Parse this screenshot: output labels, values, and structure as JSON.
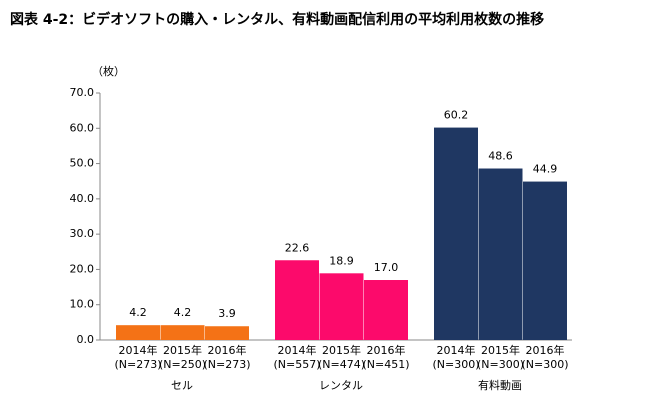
{
  "chart_data": {
    "type": "bar",
    "title": "図表 4-2：ビデオソフトの購入・レンタル、有料動画配信利用の平均利用枚数の推移",
    "y_unit": "（枚）",
    "ylim": [
      0,
      70
    ],
    "yticks": [
      {
        "value": 0,
        "label": "0.0"
      },
      {
        "value": 10,
        "label": "10.0"
      },
      {
        "value": 20,
        "label": "20.0"
      },
      {
        "value": 30,
        "label": "30.0"
      },
      {
        "value": 40,
        "label": "40.0"
      },
      {
        "value": 50,
        "label": "50.0"
      },
      {
        "value": 60,
        "label": "60.0"
      },
      {
        "value": 70,
        "label": "70.0"
      }
    ],
    "grid": false,
    "groups": [
      {
        "name": "セル",
        "color": "#f47216",
        "categories": [
          [
            "2014年",
            "(N=273)"
          ],
          [
            "2015年",
            "(N=250)"
          ],
          [
            "2016年",
            "(N=273)"
          ]
        ],
        "values": [
          4.2,
          4.2,
          3.9
        ],
        "value_labels": [
          "4.2",
          "4.2",
          "3.9"
        ]
      },
      {
        "name": "レンタル",
        "color": "#fc0a6b",
        "categories": [
          [
            "2014年",
            "(N=557)"
          ],
          [
            "2015年",
            "(N=474)"
          ],
          [
            "2016年",
            "(N=451)"
          ]
        ],
        "values": [
          22.6,
          18.9,
          17
        ],
        "value_labels": [
          "22.6",
          "18.9",
          "17.0"
        ]
      },
      {
        "name": "有料動画",
        "color": "#1f3762",
        "categories": [
          [
            "2014年",
            "(N=300)"
          ],
          [
            "2015年",
            "(N=300)"
          ],
          [
            "2016年",
            "(N=300)"
          ]
        ],
        "values": [
          60.2,
          48.6,
          44.9
        ],
        "value_labels": [
          "60.2",
          "48.6",
          "44.9"
        ]
      }
    ]
  }
}
